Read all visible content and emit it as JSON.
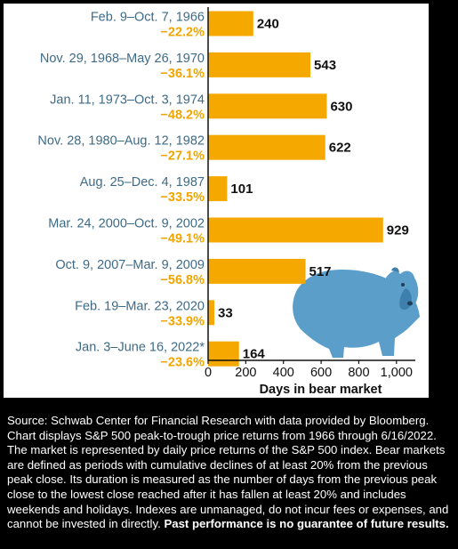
{
  "colors": {
    "bar": "#f5a800",
    "category_text": "#3d6b87",
    "percent_text": "#f0a500",
    "bear": "#5a9ec9",
    "background": "#000000",
    "panel": "#ffffff"
  },
  "chart_data": {
    "type": "bar",
    "orientation": "horizontal",
    "categories": [
      "Feb. 9–Oct. 7, 1966",
      "Nov. 29, 1968–May 26, 1970",
      "Jan. 11, 1973–Oct. 3, 1974",
      "Nov. 28, 1980–Aug. 12, 1982",
      "Aug. 25–Dec. 4, 1987",
      "Mar. 24, 2000–Oct. 9, 2002",
      "Oct. 9, 2007–Mar. 9, 2009",
      "Feb. 19–Mar. 23, 2020",
      "Jan. 3–June 16, 2022*"
    ],
    "returns": [
      "−22.2%",
      "−36.1%",
      "−48.2%",
      "−27.1%",
      "−33.5%",
      "−49.1%",
      "−56.8%",
      "−33.9%",
      "−23.6%"
    ],
    "values": [
      240,
      543,
      630,
      622,
      101,
      929,
      517,
      33,
      164
    ],
    "xlabel": "Days in bear market",
    "xlim": [
      0,
      1100
    ],
    "xticks": [
      0,
      200,
      400,
      600,
      800,
      1000
    ],
    "xtick_labels": [
      "0",
      "200",
      "400",
      "600",
      "800",
      "1,000"
    ],
    "grid": false
  },
  "footnote": {
    "text": "Source: Schwab Center for Financial Research with data provided by Bloomberg. Chart displays S&P 500 peak-to-trough price returns from 1966 through 6/16/2022. The market is represented by daily price returns of the S&P 500 index. Bear markets are defined as periods with cumulative declines of at least 20% from the previous peak close. Its duration is measured as the number of days from the previous peak close to the lowest close reached after it has fallen at least 20% and includes weekends and holidays. Indexes are unmanaged, do not incur fees or expenses, and cannot be invested in directly.",
    "bold": "Past performance is no guarantee of future results."
  }
}
